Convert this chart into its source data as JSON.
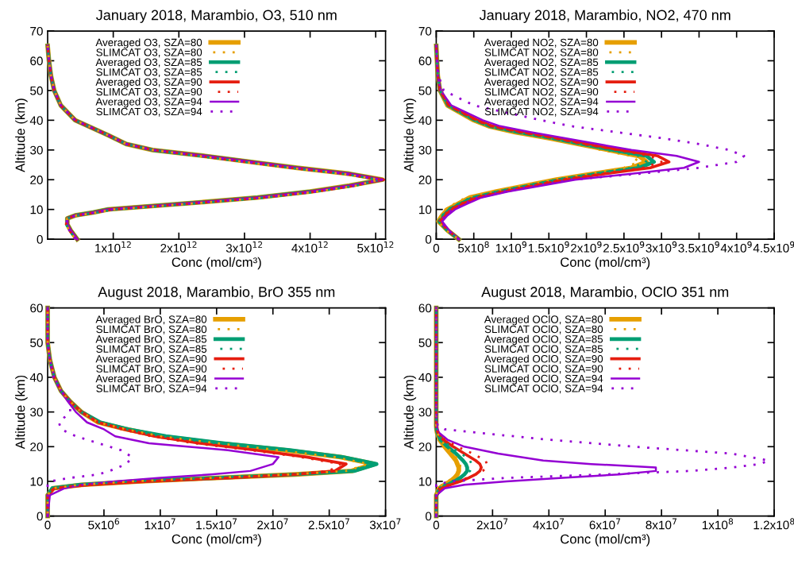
{
  "chart_data": [
    {
      "type": "line",
      "title": "January 2018, Marambio, O3, 510 nm",
      "xlabel": "Conc (mol/cm³)",
      "ylabel": "Altitude (km)",
      "legend": "top left",
      "grid": false,
      "xlim": [
        0,
        5150000000000.0
      ],
      "xticks": [
        {
          "value": 1000000000000.0,
          "label": "1x10$^{12}$"
        },
        {
          "value": 2000000000000.0,
          "label": "2x10$^{12}$"
        },
        {
          "value": 3000000000000.0,
          "label": "3x10$^{12}$"
        },
        {
          "value": 4000000000000.0,
          "label": "4x10$^{12}$"
        },
        {
          "value": 5000000000000.0,
          "label": "5x10$^{12}$"
        }
      ],
      "ylim": [
        0,
        70
      ],
      "yticks": [
        0,
        10,
        20,
        30,
        40,
        50,
        60,
        70
      ],
      "series": [
        {
          "name": "Averaged O3, SZA=80",
          "color": "#e69f00",
          "line_style": "solid",
          "x": [
            450000000000.0,
            350000000000.0,
            300000000000.0,
            300000000000.0,
            420000000000.0,
            700000000000.0,
            920000000000.0,
            2100000000000.0,
            3200000000000.0,
            4000000000000.0,
            4600000000000.0,
            5100000000000.0,
            4600000000000.0,
            3800000000000.0,
            3100000000000.0,
            2400000000000.0,
            1600000000000.0,
            1200000000000.0,
            920000000000.0,
            420000000000.0,
            200000000000.0,
            100000000000.0,
            50000000000.0,
            20000000000.0,
            0
          ],
          "values": [
            0,
            3,
            5,
            7,
            8,
            9,
            10,
            12,
            14,
            16,
            18,
            20,
            22,
            24,
            26,
            28,
            30,
            32,
            35,
            40,
            45,
            50,
            55,
            60,
            65
          ]
        },
        {
          "name": "SLIMCAT O3, SZA=80",
          "color": "#e69f00",
          "line_style": "dotted",
          "x": [
            420000000000.0,
            330000000000.0,
            280000000000.0,
            300000000000.0,
            450000000000.0,
            750000000000.0,
            1000000000000.0,
            2200000000000.0,
            3300000000000.0,
            4100000000000.0,
            4700000000000.0,
            5050000000000.0,
            4500000000000.0,
            3700000000000.0,
            3000000000000.0,
            2300000000000.0,
            1600000000000.0,
            1200000000000.0,
            920000000000.0,
            420000000000.0,
            200000000000.0,
            100000000000.0,
            50000000000.0,
            20000000000.0,
            0
          ],
          "values": [
            0,
            3,
            5,
            7,
            8,
            9,
            10,
            12,
            14,
            16,
            18,
            20,
            22,
            24,
            26,
            28,
            30,
            32,
            35,
            40,
            45,
            50,
            55,
            60,
            65
          ]
        },
        {
          "name": "Averaged O3, SZA=85",
          "color": "#009e73",
          "line_style": "solid",
          "x": [
            450000000000.0,
            350000000000.0,
            300000000000.0,
            300000000000.0,
            420000000000.0,
            700000000000.0,
            920000000000.0,
            2100000000000.0,
            3200000000000.0,
            4000000000000.0,
            4600000000000.0,
            5100000000000.0,
            4600000000000.0,
            3800000000000.0,
            3100000000000.0,
            2400000000000.0,
            1600000000000.0,
            1200000000000.0,
            920000000000.0,
            420000000000.0,
            200000000000.0,
            100000000000.0,
            50000000000.0,
            20000000000.0,
            0
          ],
          "values": [
            0,
            3,
            5,
            7,
            8,
            9,
            10,
            12,
            14,
            16,
            18,
            20,
            22,
            24,
            26,
            28,
            30,
            32,
            35,
            40,
            45,
            50,
            55,
            60,
            65
          ]
        },
        {
          "name": "SLIMCAT O3, SZA=85",
          "color": "#009e73",
          "line_style": "dotted",
          "x": [
            420000000000.0,
            330000000000.0,
            280000000000.0,
            300000000000.0,
            450000000000.0,
            750000000000.0,
            1000000000000.0,
            2200000000000.0,
            3300000000000.0,
            4100000000000.0,
            4700000000000.0,
            5050000000000.0,
            4500000000000.0,
            3700000000000.0,
            3000000000000.0,
            2300000000000.0,
            1600000000000.0,
            1200000000000.0,
            920000000000.0,
            420000000000.0,
            200000000000.0,
            100000000000.0,
            50000000000.0,
            20000000000.0,
            0
          ],
          "values": [
            0,
            3,
            5,
            7,
            8,
            9,
            10,
            12,
            14,
            16,
            18,
            20,
            22,
            24,
            26,
            28,
            30,
            32,
            35,
            40,
            45,
            50,
            55,
            60,
            65
          ]
        },
        {
          "name": "Averaged O3, SZA=90",
          "color": "#e51e10",
          "line_style": "solid",
          "x": [
            450000000000.0,
            350000000000.0,
            300000000000.0,
            300000000000.0,
            420000000000.0,
            700000000000.0,
            920000000000.0,
            2100000000000.0,
            3200000000000.0,
            4000000000000.0,
            4600000000000.0,
            5120000000000.0,
            4600000000000.0,
            3800000000000.0,
            3100000000000.0,
            2400000000000.0,
            1600000000000.0,
            1200000000000.0,
            920000000000.0,
            420000000000.0,
            200000000000.0,
            100000000000.0,
            50000000000.0,
            20000000000.0,
            0
          ],
          "values": [
            0,
            3,
            5,
            7,
            8,
            9,
            10,
            12,
            14,
            16,
            18,
            20,
            22,
            24,
            26,
            28,
            30,
            32,
            35,
            40,
            45,
            50,
            55,
            60,
            65
          ]
        },
        {
          "name": "SLIMCAT O3, SZA=90",
          "color": "#e51e10",
          "line_style": "dotted",
          "x": [
            420000000000.0,
            330000000000.0,
            280000000000.0,
            300000000000.0,
            450000000000.0,
            750000000000.0,
            1000000000000.0,
            2200000000000.0,
            3300000000000.0,
            4100000000000.0,
            4700000000000.0,
            5050000000000.0,
            4500000000000.0,
            3700000000000.0,
            3000000000000.0,
            2300000000000.0,
            1600000000000.0,
            1200000000000.0,
            920000000000.0,
            420000000000.0,
            200000000000.0,
            100000000000.0,
            50000000000.0,
            20000000000.0,
            0
          ],
          "values": [
            0,
            3,
            5,
            7,
            8,
            9,
            10,
            12,
            14,
            16,
            18,
            20,
            22,
            24,
            26,
            28,
            30,
            32,
            35,
            40,
            45,
            50,
            55,
            60,
            65
          ]
        },
        {
          "name": "Averaged O3, SZA=94",
          "color": "#9400d3",
          "line_style": "solid",
          "x": [
            450000000000.0,
            350000000000.0,
            300000000000.0,
            300000000000.0,
            420000000000.0,
            700000000000.0,
            920000000000.0,
            2100000000000.0,
            3200000000000.0,
            4000000000000.0,
            4600000000000.0,
            5100000000000.0,
            4600000000000.0,
            3800000000000.0,
            3100000000000.0,
            2400000000000.0,
            1600000000000.0,
            1200000000000.0,
            920000000000.0,
            420000000000.0,
            200000000000.0,
            100000000000.0,
            50000000000.0,
            20000000000.0,
            0
          ],
          "values": [
            0,
            3,
            5,
            7,
            8,
            9,
            10,
            12,
            14,
            16,
            18,
            20,
            22,
            24,
            26,
            28,
            30,
            32,
            35,
            40,
            45,
            50,
            55,
            60,
            65
          ]
        },
        {
          "name": "SLIMCAT O3, SZA=94",
          "color": "#9400d3",
          "line_style": "dotted",
          "x": [
            420000000000.0,
            330000000000.0,
            280000000000.0,
            300000000000.0,
            450000000000.0,
            750000000000.0,
            1000000000000.0,
            2200000000000.0,
            3300000000000.0,
            4100000000000.0,
            4700000000000.0,
            5050000000000.0,
            4500000000000.0,
            3700000000000.0,
            3000000000000.0,
            2300000000000.0,
            1600000000000.0,
            1200000000000.0,
            920000000000.0,
            420000000000.0,
            200000000000.0,
            100000000000.0,
            50000000000.0,
            20000000000.0,
            0
          ],
          "values": [
            0,
            3,
            5,
            7,
            8,
            9,
            10,
            12,
            14,
            16,
            18,
            20,
            22,
            24,
            26,
            28,
            30,
            32,
            35,
            40,
            45,
            50,
            55,
            60,
            65
          ]
        }
      ]
    },
    {
      "type": "line",
      "title": "January 2018, Marambio, NO2, 470 nm",
      "xlabel": "Conc (mol/cm³)",
      "ylabel": "Altitude (km)",
      "legend": "top left",
      "grid": false,
      "xlim": [
        0,
        4500000000.0
      ],
      "xticks": [
        0,
        {
          "value": 500000000.0,
          "label": "5x10$^{8}$"
        },
        {
          "value": 1000000000.0,
          "label": "1x10$^{9}$"
        },
        {
          "value": 1500000000.0,
          "label": "1.5x10$^{9}$"
        },
        {
          "value": 2000000000.0,
          "label": "2x10$^{9}$"
        },
        {
          "value": 2500000000.0,
          "label": "2.5x10$^{9}$"
        },
        {
          "value": 3000000000.0,
          "label": "3x10$^{9}$"
        },
        {
          "value": 3500000000.0,
          "label": "3.5x10$^{9}$"
        },
        {
          "value": 4000000000.0,
          "label": "4x10$^{9}$"
        },
        {
          "value": 4500000000.0,
          "label": "4.5x10$^{9}$"
        }
      ],
      "ylim": [
        0,
        70
      ],
      "yticks": [
        0,
        10,
        20,
        30,
        40,
        50,
        60,
        70
      ],
      "series": [
        {
          "name": "Averaged NO2, SZA=80",
          "color": "#e69f00",
          "line_style": "solid",
          "x": [
            300000000.0,
            150000000.0,
            30000000.0,
            80000000.0,
            150000000.0,
            300000000.0,
            450000000.0,
            800000000.0,
            1200000000.0,
            1600000000.0,
            2100000000.0,
            2600000000.0,
            2800000000.0,
            2700000000.0,
            2300000000.0,
            1900000000.0,
            1500000000.0,
            1050000000.0,
            700000000.0,
            500000000.0,
            150000000.0,
            50000000.0,
            20000000.0,
            0
          ],
          "values": [
            0,
            3,
            6,
            8,
            10,
            12,
            14,
            16,
            18,
            20,
            22,
            24,
            26,
            28,
            30,
            32,
            34,
            36,
            38,
            40,
            45,
            50,
            55,
            65
          ]
        },
        {
          "name": "SLIMCAT NO2, SZA=80",
          "color": "#e69f00",
          "line_style": "dotted",
          "x": [
            300000000.0,
            130000000.0,
            20000000.0,
            60000000.0,
            120000000.0,
            250000000.0,
            400000000.0,
            750000000.0,
            1150000000.0,
            1550000000.0,
            2050000000.0,
            2500000000.0,
            2700000000.0,
            2600000000.0,
            2200000000.0,
            1850000000.0,
            1450000000.0,
            1000000000.0,
            680000000.0,
            480000000.0,
            140000000.0,
            50000000.0,
            20000000.0,
            0
          ],
          "values": [
            0,
            3,
            6,
            8,
            10,
            12,
            14,
            16,
            18,
            20,
            22,
            24,
            26,
            28,
            30,
            32,
            34,
            36,
            38,
            40,
            45,
            50,
            55,
            65
          ]
        },
        {
          "name": "Averaged NO2, SZA=85",
          "color": "#009e73",
          "line_style": "solid",
          "x": [
            300000000.0,
            150000000.0,
            40000000.0,
            100000000.0,
            180000000.0,
            330000000.0,
            500000000.0,
            850000000.0,
            1250000000.0,
            1650000000.0,
            2150000000.0,
            2700000000.0,
            2900000000.0,
            2800000000.0,
            2350000000.0,
            1950000000.0,
            1550000000.0,
            1100000000.0,
            720000000.0,
            520000000.0,
            160000000.0,
            50000000.0,
            20000000.0,
            0
          ],
          "values": [
            0,
            3,
            6,
            8,
            10,
            12,
            14,
            16,
            18,
            20,
            22,
            24,
            26,
            28,
            30,
            32,
            34,
            36,
            38,
            40,
            45,
            50,
            55,
            65
          ]
        },
        {
          "name": "SLIMCAT NO2, SZA=85",
          "color": "#009e73",
          "line_style": "dotted",
          "x": [
            300000000.0,
            140000000.0,
            30000000.0,
            80000000.0,
            150000000.0,
            300000000.0,
            460000000.0,
            800000000.0,
            1200000000.0,
            1600000000.0,
            2100000000.0,
            2600000000.0,
            2800000000.0,
            2700000000.0,
            2280000000.0,
            1900000000.0,
            1500000000.0,
            1050000000.0,
            700000000.0,
            500000000.0,
            150000000.0,
            50000000.0,
            20000000.0,
            0
          ],
          "values": [
            0,
            3,
            6,
            8,
            10,
            12,
            14,
            16,
            18,
            20,
            22,
            24,
            26,
            28,
            30,
            32,
            34,
            36,
            38,
            40,
            45,
            50,
            55,
            65
          ]
        },
        {
          "name": "Averaged NO2, SZA=90",
          "color": "#e51e10",
          "line_style": "solid",
          "x": [
            300000000.0,
            160000000.0,
            50000000.0,
            120000000.0,
            200000000.0,
            360000000.0,
            550000000.0,
            900000000.0,
            1300000000.0,
            1700000000.0,
            2250000000.0,
            2850000000.0,
            3100000000.0,
            2950000000.0,
            2450000000.0,
            2000000000.0,
            1600000000.0,
            1150000000.0,
            750000000.0,
            550000000.0,
            170000000.0,
            50000000.0,
            20000000.0,
            0
          ],
          "values": [
            0,
            3,
            6,
            8,
            10,
            12,
            14,
            16,
            18,
            20,
            22,
            24,
            26,
            28,
            30,
            32,
            34,
            36,
            38,
            40,
            45,
            50,
            55,
            65
          ]
        },
        {
          "name": "SLIMCAT NO2, SZA=90",
          "color": "#e51e10",
          "line_style": "dotted",
          "x": [
            300000000.0,
            150000000.0,
            40000000.0,
            100000000.0,
            180000000.0,
            330000000.0,
            500000000.0,
            850000000.0,
            1250000000.0,
            1650000000.0,
            2200000000.0,
            2750000000.0,
            3000000000.0,
            2850000000.0,
            2400000000.0,
            1950000000.0,
            1550000000.0,
            1100000000.0,
            720000000.0,
            520000000.0,
            160000000.0,
            50000000.0,
            20000000.0,
            0
          ],
          "values": [
            0,
            3,
            6,
            8,
            10,
            12,
            14,
            16,
            18,
            20,
            22,
            24,
            26,
            28,
            30,
            32,
            34,
            36,
            38,
            40,
            45,
            50,
            55,
            65
          ]
        },
        {
          "name": "Averaged NO2, SZA=94",
          "color": "#9400d3",
          "line_style": "solid",
          "x": [
            300000000.0,
            170000000.0,
            80000000.0,
            150000000.0,
            250000000.0,
            420000000.0,
            600000000.0,
            950000000.0,
            1400000000.0,
            1850000000.0,
            2600000000.0,
            3300000000.0,
            3500000000.0,
            3200000000.0,
            2600000000.0,
            2150000000.0,
            1700000000.0,
            1250000000.0,
            850000000.0,
            620000000.0,
            200000000.0,
            60000000.0,
            20000000.0,
            0
          ],
          "values": [
            0,
            3,
            6,
            8,
            10,
            12,
            14,
            16,
            18,
            20,
            22,
            24,
            26,
            28,
            30,
            32,
            34,
            36,
            38,
            40,
            45,
            50,
            55,
            65
          ]
        },
        {
          "name": "SLIMCAT NO2, SZA=94",
          "color": "#9400d3",
          "line_style": "dotted",
          "x": [
            300000000.0,
            150000000.0,
            60000000.0,
            120000000.0,
            220000000.0,
            380000000.0,
            550000000.0,
            900000000.0,
            1350000000.0,
            1800000000.0,
            2700000000.0,
            3500000000.0,
            4000000000.0,
            4100000000.0,
            3900000000.0,
            3500000000.0,
            3000000000.0,
            2400000000.0,
            1800000000.0,
            1400000000.0,
            500000000.0,
            100000000.0,
            30000000.0,
            0
          ],
          "values": [
            0,
            3,
            6,
            8,
            10,
            12,
            14,
            16,
            18,
            20,
            22,
            24,
            26,
            28,
            30,
            32,
            34,
            36,
            38,
            40,
            45,
            50,
            55,
            65
          ]
        }
      ]
    },
    {
      "type": "line",
      "title": "August 2018, Marambio, BrO 355 nm",
      "xlabel": "Conc (mol/cm³)",
      "ylabel": "Altitude (km)",
      "legend": "top left",
      "grid": false,
      "xlim": [
        0,
        30000000.0
      ],
      "xticks": [
        0,
        {
          "value": 5000000.0,
          "label": "5x10$^{6}$"
        },
        {
          "value": 10000000.0,
          "label": "1x10$^{7}$"
        },
        {
          "value": 15000000.0,
          "label": "1.5x10$^{7}$"
        },
        {
          "value": 20000000.0,
          "label": "2x10$^{7}$"
        },
        {
          "value": 25000000.0,
          "label": "2.5x10$^{7}$"
        },
        {
          "value": 30000000.0,
          "label": "3x10$^{7}$"
        }
      ],
      "ylim": [
        0,
        60
      ],
      "yticks": [
        0,
        10,
        20,
        30,
        40,
        50,
        60
      ],
      "series": [
        {
          "name": "Averaged BrO, SZA=80",
          "color": "#e69f00",
          "line_style": "solid",
          "x": [
            0,
            0,
            500000.0,
            3000000.0,
            8000000.0,
            15000000.0,
            22000000.0,
            27000000.0,
            29000000.0,
            26000000.0,
            21000000.0,
            15000000.0,
            10000000.0,
            7000000.0,
            4500000.0,
            3000000.0,
            2000000.0,
            1200000.0,
            600000.0,
            200000.0,
            0,
            0
          ],
          "values": [
            0,
            6,
            8,
            9,
            10,
            11,
            12,
            13,
            15,
            17,
            19,
            21,
            23,
            25,
            27,
            30,
            33,
            36,
            40,
            45,
            50,
            60
          ]
        },
        {
          "name": "SLIMCAT BrO, SZA=80",
          "color": "#e69f00",
          "line_style": "dotted",
          "x": [
            0,
            0,
            400000.0,
            2800000.0,
            7500000.0,
            14500000.0,
            21500000.0,
            26500000.0,
            28500000.0,
            25500000.0,
            20500000.0,
            15000000.0,
            10000000.0,
            7000000.0,
            4500000.0,
            3000000.0,
            2000000.0,
            1200000.0,
            600000.0,
            200000.0,
            0,
            0
          ],
          "values": [
            0,
            6,
            8,
            9,
            10,
            11,
            12,
            13,
            15,
            17,
            19,
            21,
            23,
            25,
            27,
            30,
            33,
            36,
            40,
            45,
            50,
            60
          ]
        },
        {
          "name": "Averaged BrO, SZA=85",
          "color": "#009e73",
          "line_style": "solid",
          "x": [
            0,
            0,
            400000.0,
            2800000.0,
            7800000.0,
            15000000.0,
            22000000.0,
            27200000.0,
            29200000.0,
            26200000.0,
            21500000.0,
            15500000.0,
            10500000.0,
            7200000.0,
            4700000.0,
            3000000.0,
            2000000.0,
            1200000.0,
            600000.0,
            200000.0,
            0,
            0
          ],
          "values": [
            0,
            6,
            8,
            9,
            10,
            11,
            12,
            13,
            15,
            17,
            19,
            21,
            23,
            25,
            27,
            30,
            33,
            36,
            40,
            45,
            50,
            60
          ]
        },
        {
          "name": "SLIMCAT BrO, SZA=85",
          "color": "#009e73",
          "line_style": "dotted",
          "x": [
            0,
            0,
            400000.0,
            2600000.0,
            7500000.0,
            14500000.0,
            21500000.0,
            26800000.0,
            28800000.0,
            25800000.0,
            21000000.0,
            15000000.0,
            10200000.0,
            7000000.0,
            4600000.0,
            3000000.0,
            2000000.0,
            1200000.0,
            600000.0,
            200000.0,
            0,
            0
          ],
          "values": [
            0,
            6,
            8,
            9,
            10,
            11,
            12,
            13,
            15,
            17,
            19,
            21,
            23,
            25,
            27,
            30,
            33,
            36,
            40,
            45,
            50,
            60
          ]
        },
        {
          "name": "Averaged BrO, SZA=90",
          "color": "#e51e10",
          "line_style": "solid",
          "x": [
            0,
            0,
            600000.0,
            3500000.0,
            9000000.0,
            16000000.0,
            22000000.0,
            25500000.0,
            26500000.0,
            23000000.0,
            18500000.0,
            13500000.0,
            9500000.0,
            6800000.0,
            4500000.0,
            3000000.0,
            2000000.0,
            1200000.0,
            600000.0,
            200000.0,
            0,
            0
          ],
          "values": [
            0,
            6,
            8,
            9,
            10,
            11,
            12,
            13,
            15,
            17,
            19,
            21,
            23,
            25,
            27,
            30,
            33,
            36,
            40,
            45,
            50,
            60
          ]
        },
        {
          "name": "SLIMCAT BrO, SZA=90",
          "color": "#e51e10",
          "line_style": "dotted",
          "x": [
            0,
            0,
            500000.0,
            3300000.0,
            8600000.0,
            15500000.0,
            21500000.0,
            25000000.0,
            26000000.0,
            22500000.0,
            18000000.0,
            13000000.0,
            9200000.0,
            6600000.0,
            4400000.0,
            3000000.0,
            2000000.0,
            1200000.0,
            600000.0,
            200000.0,
            0,
            0
          ],
          "values": [
            0,
            6,
            8,
            9,
            10,
            11,
            12,
            13,
            15,
            17,
            19,
            21,
            23,
            25,
            27,
            30,
            33,
            36,
            40,
            45,
            50,
            60
          ]
        },
        {
          "name": "Averaged BrO, SZA=94",
          "color": "#9400d3",
          "line_style": "solid",
          "x": [
            0,
            200000.0,
            1500000.0,
            3000000.0,
            6000000.0,
            10000000.0,
            14500000.0,
            18000000.0,
            20000000.0,
            20500000.0,
            16000000.0,
            9000000.0,
            6000000.0,
            5000000.0,
            3500000.0,
            2500000.0,
            1800000.0,
            1200000.0,
            600000.0,
            200000.0,
            0,
            0
          ],
          "values": [
            0,
            6,
            8,
            9,
            10,
            11,
            12,
            13,
            15,
            17,
            19,
            21,
            23,
            25,
            27,
            30,
            33,
            36,
            40,
            45,
            50,
            60
          ]
        },
        {
          "name": "SLIMCAT BrO, SZA=94",
          "color": "#9400d3",
          "line_style": "dotted",
          "x": [
            0,
            0,
            0,
            0,
            200000.0,
            2000000.0,
            4500000.0,
            5500000.0,
            7000000.0,
            7500000.0,
            6500000.0,
            4500000.0,
            2500000.0,
            1200000.0,
            1000000.0,
            2000000.0,
            2000000.0,
            1200000.0,
            500000.0,
            200000.0,
            0,
            0
          ],
          "values": [
            0,
            6,
            8,
            9,
            10,
            11,
            12,
            13,
            15,
            17,
            19,
            21,
            23,
            25,
            27,
            30,
            33,
            36,
            40,
            45,
            50,
            60
          ]
        }
      ]
    },
    {
      "type": "line",
      "title": "August 2018, Marambio, OClO 351 nm",
      "xlabel": "Conc (mol/cm³)",
      "ylabel": "Altitude (km)",
      "legend": "top left",
      "grid": false,
      "xlim": [
        0,
        120000000.0
      ],
      "xticks": [
        0,
        {
          "value": 20000000.0,
          "label": "2x10$^{7}$"
        },
        {
          "value": 40000000.0,
          "label": "4x10$^{7}$"
        },
        {
          "value": 60000000.0,
          "label": "6x10$^{7}$"
        },
        {
          "value": 80000000.0,
          "label": "8x10$^{7}$"
        },
        {
          "value": 100000000.0,
          "label": "1x10$^{8}$"
        },
        {
          "value": 120000000.0,
          "label": "1.2x10$^{8}$"
        }
      ],
      "ylim": [
        0,
        60
      ],
      "yticks": [
        0,
        10,
        20,
        30,
        40,
        50,
        60
      ],
      "series": [
        {
          "name": "Averaged OClO, SZA=80",
          "color": "#e69f00",
          "line_style": "solid",
          "x": [
            0,
            0,
            1000000.0,
            3000000.0,
            5000000.0,
            6500000.0,
            7500000.0,
            8000000.0,
            8000000.0,
            7500000.0,
            7000000.0,
            5000000.0,
            3000000.0,
            1200000.0,
            300000.0,
            100000.0,
            0,
            0,
            0
          ],
          "values": [
            0,
            6,
            8,
            9,
            10,
            11,
            12,
            13,
            14,
            15,
            16,
            18,
            20,
            22,
            24,
            25,
            26,
            30,
            60
          ]
        },
        {
          "name": "SLIMCAT OClO, SZA=80",
          "color": "#e69f00",
          "line_style": "dotted",
          "x": [
            0,
            0,
            500000.0,
            2000000.0,
            4000000.0,
            6000000.0,
            7500000.0,
            8500000.0,
            8500000.0,
            8500000.0,
            8000000.0,
            6000000.0,
            3500000.0,
            1500000.0,
            400000.0,
            100000.0,
            0,
            0,
            0
          ],
          "values": [
            0,
            6,
            8,
            9,
            10,
            11,
            12,
            13,
            14,
            15,
            16,
            18,
            20,
            22,
            24,
            25,
            26,
            30,
            60
          ]
        },
        {
          "name": "Averaged OClO, SZA=85",
          "color": "#009e73",
          "line_style": "solid",
          "x": [
            0,
            0,
            1500000.0,
            4000000.0,
            6500000.0,
            8500000.0,
            10000000.0,
            11000000.0,
            11000000.0,
            10500000.0,
            9500000.0,
            7000000.0,
            4000000.0,
            1500000.0,
            400000.0,
            100000.0,
            0,
            0,
            0
          ],
          "values": [
            0,
            6,
            8,
            9,
            10,
            11,
            12,
            13,
            14,
            15,
            16,
            18,
            20,
            22,
            24,
            25,
            26,
            30,
            60
          ]
        },
        {
          "name": "SLIMCAT OClO, SZA=85",
          "color": "#009e73",
          "line_style": "dotted",
          "x": [
            0,
            0,
            700000.0,
            3000000.0,
            5500000.0,
            8500000.0,
            10500000.0,
            12000000.0,
            12500000.0,
            12500000.0,
            12000000.0,
            9000000.0,
            5000000.0,
            2000000.0,
            500000.0,
            100000.0,
            0,
            0,
            0
          ],
          "values": [
            0,
            6,
            8,
            9,
            10,
            11,
            12,
            13,
            14,
            15,
            16,
            18,
            20,
            22,
            24,
            25,
            26,
            30,
            60
          ]
        },
        {
          "name": "Averaged OClO, SZA=90",
          "color": "#e51e10",
          "line_style": "solid",
          "x": [
            0,
            0,
            2000000.0,
            5000000.0,
            8500000.0,
            11500000.0,
            14000000.0,
            15500000.0,
            16000000.0,
            15500000.0,
            14000000.0,
            10000000.0,
            6000000.0,
            2500000.0,
            600000.0,
            200000.0,
            0,
            0,
            0
          ],
          "values": [
            0,
            6,
            8,
            9,
            10,
            11,
            12,
            13,
            14,
            15,
            16,
            18,
            20,
            22,
            24,
            25,
            26,
            30,
            60
          ]
        },
        {
          "name": "SLIMCAT OClO, SZA=90",
          "color": "#e51e10",
          "line_style": "dotted",
          "x": [
            0,
            0,
            1000000.0,
            4000000.0,
            7500000.0,
            11000000.0,
            14000000.0,
            16500000.0,
            18000000.0,
            18000000.0,
            17500000.0,
            13000000.0,
            7500000.0,
            3000000.0,
            700000.0,
            200000.0,
            0,
            0,
            0
          ],
          "values": [
            0,
            6,
            8,
            9,
            10,
            11,
            12,
            13,
            14,
            15,
            16,
            18,
            20,
            22,
            24,
            25,
            26,
            30,
            60
          ]
        },
        {
          "name": "Averaged OClO, SZA=94",
          "color": "#9400d3",
          "line_style": "solid",
          "x": [
            0,
            0,
            3000000.0,
            10000000.0,
            25000000.0,
            45000000.0,
            65000000.0,
            78000000.0,
            78000000.0,
            55000000.0,
            38000000.0,
            22000000.0,
            10000000.0,
            4000000.0,
            1000000.0,
            500000.0,
            200000.0,
            0,
            0
          ],
          "values": [
            0,
            6,
            8,
            9,
            10,
            11,
            12,
            13,
            14,
            15,
            16,
            18,
            20,
            22,
            24,
            25,
            26,
            30,
            60
          ]
        },
        {
          "name": "SLIMCAT OClO, SZA=94",
          "color": "#9400d3",
          "line_style": "dotted",
          "x": [
            0,
            0,
            0,
            0,
            5000000.0,
            25000000.0,
            60000000.0,
            90000000.0,
            105000000.0,
            115000000.0,
            118000000.0,
            105000000.0,
            70000000.0,
            40000000.0,
            15000000.0,
            3000000.0,
            500000.0,
            0,
            0
          ],
          "values": [
            0,
            6,
            8,
            9,
            10,
            11,
            12,
            13,
            14,
            15,
            16,
            18,
            20,
            22,
            24,
            25,
            26,
            30,
            60
          ]
        }
      ]
    }
  ]
}
